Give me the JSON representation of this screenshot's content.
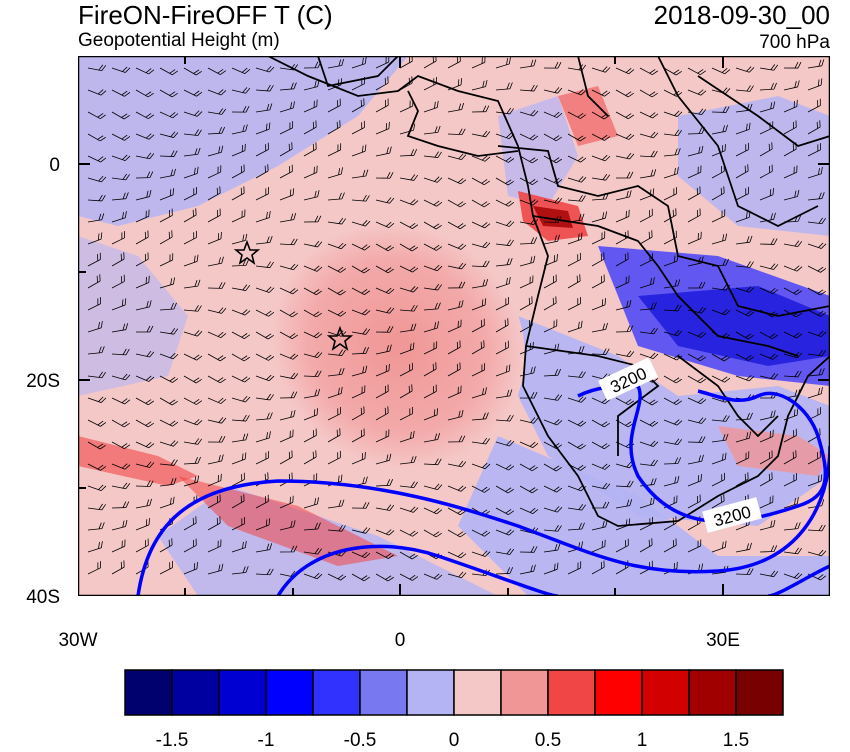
{
  "header": {
    "title_left": "FireON-FireOFF T (C)",
    "subtitle_left": "Geopotential Height (m)",
    "title_right": "2018-09-30_00",
    "subtitle_right": "700 hPa"
  },
  "map": {
    "lon_range": [
      -30,
      40
    ],
    "lat_range": [
      -40,
      10
    ],
    "x_ticks": [
      "30W",
      "0",
      "30E"
    ],
    "y_ticks": [
      "0",
      "20S",
      "40S"
    ],
    "contour_labels": [
      "3200",
      "3200"
    ],
    "markers": [
      "star",
      "star"
    ],
    "colors": {
      "land_outline": "#000000",
      "contour": "#0000ff",
      "barbs": "#000000"
    }
  },
  "colorbar": {
    "colors": [
      "#00006e",
      "#0000a0",
      "#0000d2",
      "#0000ff",
      "#3232ff",
      "#7878f0",
      "#b4b4f5",
      "#f5c8c8",
      "#f09696",
      "#f04646",
      "#ff0000",
      "#d20000",
      "#a00000",
      "#780000"
    ],
    "labels": [
      "-1.5",
      "-1",
      "-0.5",
      "0",
      "0.5",
      "1",
      "1.5"
    ]
  }
}
